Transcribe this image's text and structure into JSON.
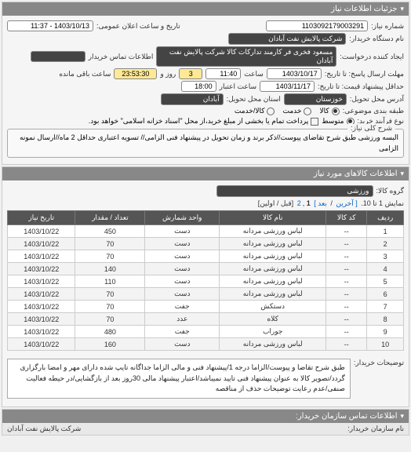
{
  "header": {
    "title": "جزئیات اطلاعات نیاز"
  },
  "request": {
    "number_label": "شماره نیاز:",
    "number_value": "1103092179003291",
    "announce_label": "تاریخ و ساعت اعلان عمومی:",
    "announce_value": "1403/10/13 - 11:37",
    "buyer_label": "نام دستگاه خریدار:",
    "buyer_value": "شرکت پالایش نفت آبادان",
    "requester_label": "ایجاد کننده درخواست:",
    "requester_value": "مسعود فخری فر کارمند تدارکات کالا شرکت پالایش نفت آبادان",
    "contact_label": "اطلاعات تماس خریدار",
    "contact_value": "",
    "deadline_label": "مهلت ارسال پاسخ: تا تاریخ:",
    "deadline_date": "1403/10/17",
    "deadline_time_label": "ساعت",
    "deadline_time": "11:40",
    "days_value": "3",
    "days_label": "روز و",
    "remain_value": "23:53:30",
    "remain_label": "ساعت باقی مانده",
    "price_deadline_label": "حداقل پیشنهاد قیمت: تا تاریخ:",
    "price_date": "1403/11/17",
    "price_time_label": "ساعت اعتبار",
    "price_time": "18:00",
    "delivery_addr_label": "آدرس محل تحویل:",
    "delivery_addr_value": "خوزستان",
    "delivery_city_label": "استان محل تحویل:",
    "delivery_city_value": "آبادان",
    "budget_label": "طبقه بندی موضوعی:",
    "budget_opts": [
      "کالا",
      "خدمت",
      "کالا/خدمت"
    ],
    "budget_sel": 0,
    "contract_label": "نوع فرآیند خرید:",
    "contract_opts": [
      "متوسط"
    ],
    "pay_check_label": "پرداخت تمام یا بخشی از مبلغ خرید،از محل \"اسناد خزانه اسلامی\" خواهد بود.",
    "desc_title": "شرح کلی نیاز:",
    "desc_text": "البسه ورزشی طبق شرح تقاضای پیوست//ذکر برند و زمان تحویل در پیشنهاد فنی الزامی// تسویه اعتباری حداقل 2 ماه//ارسال نمونه الزامی"
  },
  "goods": {
    "header": "اطلاعات کالاهای مورد نیاز",
    "group_label": "گروه کالا:",
    "group_value": "ورزشی",
    "pager_text_a": "نمایش 1 تا 10.",
    "pager_prev": "[ آخرین",
    "pager_next": "بعد ]",
    "pager_pages": [
      "1",
      "2"
    ],
    "pager_suffix": "[قبل / اولین]",
    "columns": [
      "ردیف",
      "کد کالا",
      "نام کالا",
      "واحد شمارش",
      "تعداد / مقدار",
      "تاریخ نیاز"
    ],
    "rows": [
      [
        "1",
        "--",
        "لباس ورزشی مردانه",
        "دست",
        "450",
        "1403/10/22"
      ],
      [
        "2",
        "--",
        "لباس ورزشی مردانه",
        "دست",
        "70",
        "1403/10/22"
      ],
      [
        "3",
        "--",
        "لباس ورزشی مردانه",
        "دست",
        "70",
        "1403/10/22"
      ],
      [
        "4",
        "--",
        "لباس ورزشی مردانه",
        "دست",
        "140",
        "1403/10/22"
      ],
      [
        "5",
        "--",
        "لباس ورزشی مردانه",
        "دست",
        "110",
        "1403/10/22"
      ],
      [
        "6",
        "--",
        "لباس ورزشی مردانه",
        "دست",
        "70",
        "1403/10/22"
      ],
      [
        "7",
        "--",
        "دستکش",
        "جفت",
        "70",
        "1403/10/22"
      ],
      [
        "8",
        "--",
        "کلاه",
        "عدد",
        "70",
        "1403/10/22"
      ],
      [
        "9",
        "--",
        "جوراب",
        "جفت",
        "480",
        "1403/10/22"
      ],
      [
        "10",
        "--",
        "لباس ورزشی مردانه",
        "دست",
        "160",
        "1403/10/22"
      ]
    ],
    "note_label": "توضیحات خریدار:",
    "note_text": "طبق شرح تقاضا و پیوست/الزاما درجه 1/پیشنهاد فنی و مالی الزاما جداگانه تایپ شده دارای مهر و امضا بارگزاری گردد/تصویر کالا به عنوان پیشنهاد فنی تایید نمیباشد/اعتبار پیشنهاد مالی 30روز بعد از بازگشایی/در حیطه فعالیت صنفی/عدم رعایت توضیحات حذف از مناقصه"
  },
  "footer": {
    "org_label": "اطلاعات تماس سازمان خریدار:",
    "seller_label": "نام سازمان خریدار:",
    "seller_value": "شرکت پالایش نفت آبادان"
  },
  "colors": {
    "header_bg": "#888888",
    "field_dark": "#444444",
    "field_yellow": "#ffe994"
  }
}
